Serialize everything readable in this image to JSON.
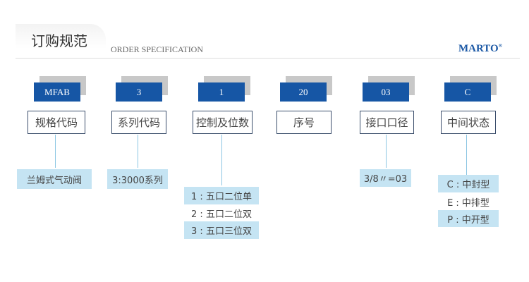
{
  "header": {
    "title": "订购规范",
    "subtitle": "ORDER SPECIFICATION",
    "brand": "MARTO",
    "brand_mark": "®"
  },
  "colors": {
    "code_box": "#1656a5",
    "tag_bg": "#c5e4f3",
    "connector": "#8cc6e3",
    "brand": "#1b58a5"
  },
  "columns": [
    {
      "code": "MFAB",
      "label": "规格代码",
      "options": [
        "兰姆式气动阀"
      ]
    },
    {
      "code": "3",
      "label": "系列代码",
      "options": [
        "3:3000系列"
      ]
    },
    {
      "code": "1",
      "label": "控制及位数",
      "options": [
        "1 : 五口二位单",
        "2 : 五口二位双",
        "3 : 五口三位双"
      ]
    },
    {
      "code": "20",
      "label": "序号",
      "options": []
    },
    {
      "code": "03",
      "label": "接口口径",
      "options": [
        "3/8〃=03"
      ]
    },
    {
      "code": "C",
      "label": "中间状态",
      "options": [
        "C : 中封型",
        "E : 中排型",
        "P : 中开型"
      ]
    }
  ]
}
